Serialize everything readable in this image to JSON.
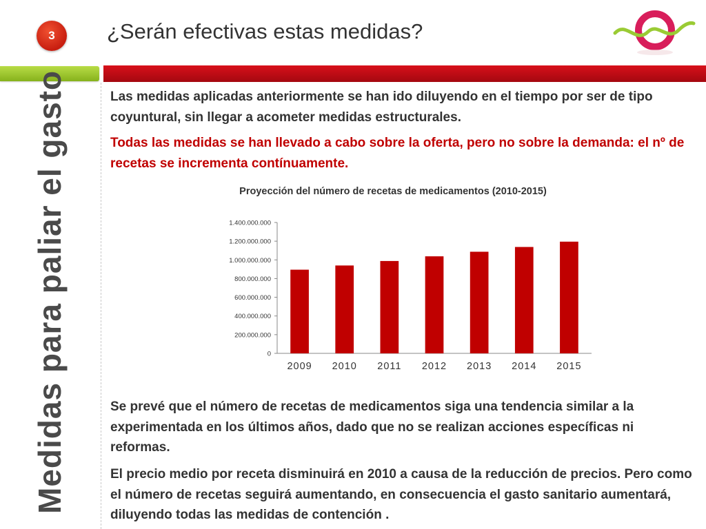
{
  "slide_number": "3",
  "title": "¿Serán efectivas estas medidas?",
  "side_title": "Medidas para paliar el gasto",
  "colors": {
    "accent_red": "#c00000",
    "bar_red": "#c00000",
    "green": "#9acb34"
  },
  "paragraphs": {
    "p1": "Las medidas aplicadas anteriormente se han ido diluyendo en el tiempo por ser de tipo coyuntural, sin llegar a acometer medidas estructurales.",
    "p2": "Todas las medidas se han llevado a cabo sobre la oferta, pero no sobre la demanda: el nº de recetas se incrementa contínuamente.",
    "p3": "Se prevé que el número de recetas de medicamentos siga una tendencia similar a la experimentada en los últimos años, dado que no se realizan acciones específicas ni reformas.",
    "p4": "El precio medio por receta disminuirá en 2010 a causa de la reducción de precios.  Pero como el número de recetas seguirá aumentando, en consecuencia el gasto sanitario aumentará, diluyendo todas las medidas de contención ."
  },
  "chart_data": {
    "type": "bar",
    "title": "Proyección del número de recetas de medicamentos (2010-2015)",
    "categories": [
      "2009",
      "2010",
      "2011",
      "2012",
      "2013",
      "2014",
      "2015"
    ],
    "values": [
      895000000,
      940000000,
      988000000,
      1038000000,
      1087000000,
      1138000000,
      1195000000
    ],
    "ylim": [
      0,
      1400000000
    ],
    "yticks": [
      "0",
      "200.000.000",
      "400.000.000",
      "600.000.000",
      "800.000.000",
      "1.000.000.000",
      "1.200.000.000",
      "1.400.000.000"
    ],
    "ytick_values": [
      0,
      200000000,
      400000000,
      600000000,
      800000000,
      1000000000,
      1200000000,
      1400000000
    ],
    "grid": false,
    "legend": "none"
  }
}
